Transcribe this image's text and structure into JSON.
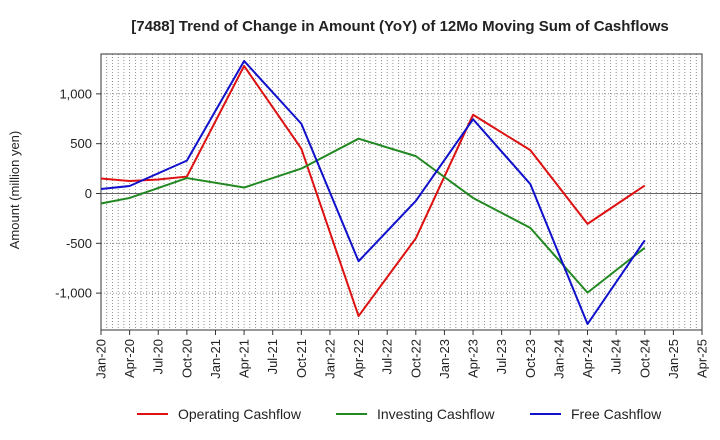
{
  "chart_data": {
    "type": "line",
    "title": "[7488]  Trend of Change in Amount (YoY) of 12Mo Moving Sum of Cashflows",
    "xlabel": "",
    "ylabel": "Amount (million yen)",
    "ylim": [
      -1370,
      1400
    ],
    "yticks": [
      1000,
      500,
      0,
      -500,
      -1000
    ],
    "ytick_labels": [
      "1,000",
      "500",
      "0",
      "-500",
      "-1,000"
    ],
    "categories": [
      "Jan-20",
      "Apr-20",
      "Jul-20",
      "Oct-20",
      "Jan-21",
      "Apr-21",
      "Jul-21",
      "Oct-21",
      "Jan-22",
      "Apr-22",
      "Jul-22",
      "Oct-22",
      "Jan-23",
      "Apr-23",
      "Jul-23",
      "Oct-23",
      "Jan-24",
      "Apr-24",
      "Jul-24",
      "Oct-24",
      "Jan-25",
      "Apr-25"
    ],
    "series": [
      {
        "name": "Operating Cashflow",
        "color": "#dd1111",
        "values": [
          150,
          125,
          140,
          170,
          null,
          1280,
          null,
          450,
          null,
          -1230,
          null,
          -450,
          null,
          790,
          null,
          435,
          null,
          -305,
          null,
          80,
          null,
          null
        ]
      },
      {
        "name": "Investing Cashflow",
        "color": "#228822",
        "values": [
          -100,
          -45,
          null,
          155,
          null,
          60,
          null,
          250,
          null,
          550,
          null,
          375,
          null,
          -45,
          null,
          -345,
          null,
          -995,
          null,
          -545,
          null,
          null
        ]
      },
      {
        "name": "Free Cashflow",
        "color": "#1111cc",
        "values": [
          45,
          75,
          null,
          330,
          null,
          1330,
          null,
          700,
          null,
          -680,
          null,
          -75,
          null,
          745,
          null,
          95,
          null,
          -1310,
          null,
          -470,
          null,
          null
        ]
      }
    ],
    "legend_position": "bottom",
    "grid": true
  }
}
